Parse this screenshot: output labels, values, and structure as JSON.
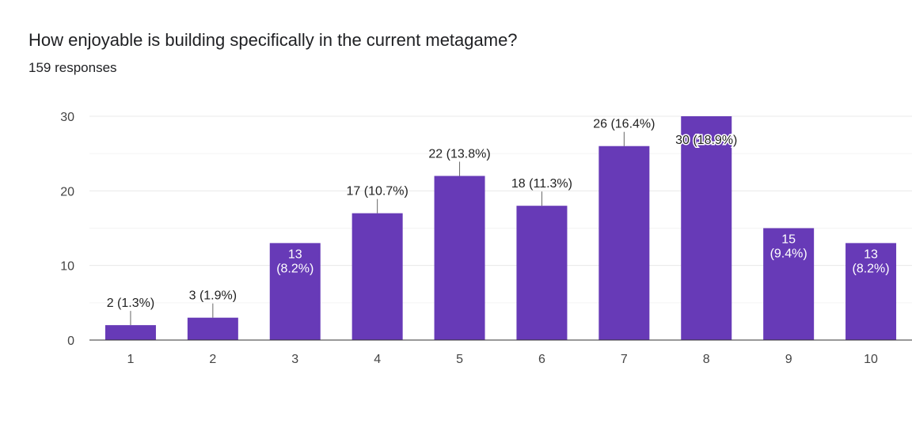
{
  "header": {
    "title": "How enjoyable is building specifically in the current metagame?",
    "responses": "159 responses"
  },
  "colors": {
    "bar": "#673ab7",
    "grid_major": "#e8e8e8",
    "grid_minor": "#f4f4f4",
    "axis": "#333333",
    "label_inside": "#ffffff",
    "label_outside": "#222222"
  },
  "chart_data": {
    "type": "bar",
    "title": "How enjoyable is building specifically in the current metagame?",
    "subtitle": "159 responses",
    "categories": [
      "1",
      "2",
      "3",
      "4",
      "5",
      "6",
      "7",
      "8",
      "9",
      "10"
    ],
    "values": [
      2,
      3,
      13,
      17,
      22,
      18,
      26,
      30,
      15,
      13
    ],
    "data_labels": [
      [
        "2 (1.3%)"
      ],
      [
        "3 (1.9%)"
      ],
      [
        "13",
        "(8.2%)"
      ],
      [
        "17 (10.7%)"
      ],
      [
        "22 (13.8%)"
      ],
      [
        "18 (11.3%)"
      ],
      [
        "26 (16.4%)"
      ],
      [
        "30 (18.9%)"
      ],
      [
        "15",
        "(9.4%)"
      ],
      [
        "13",
        "(8.2%)"
      ]
    ],
    "label_inside": [
      false,
      false,
      true,
      false,
      false,
      false,
      false,
      false,
      true,
      true
    ],
    "yticks": [
      "0",
      "10",
      "20",
      "30"
    ],
    "ylim": [
      0,
      30
    ],
    "xlabel": "",
    "ylabel": "",
    "grid": true
  }
}
